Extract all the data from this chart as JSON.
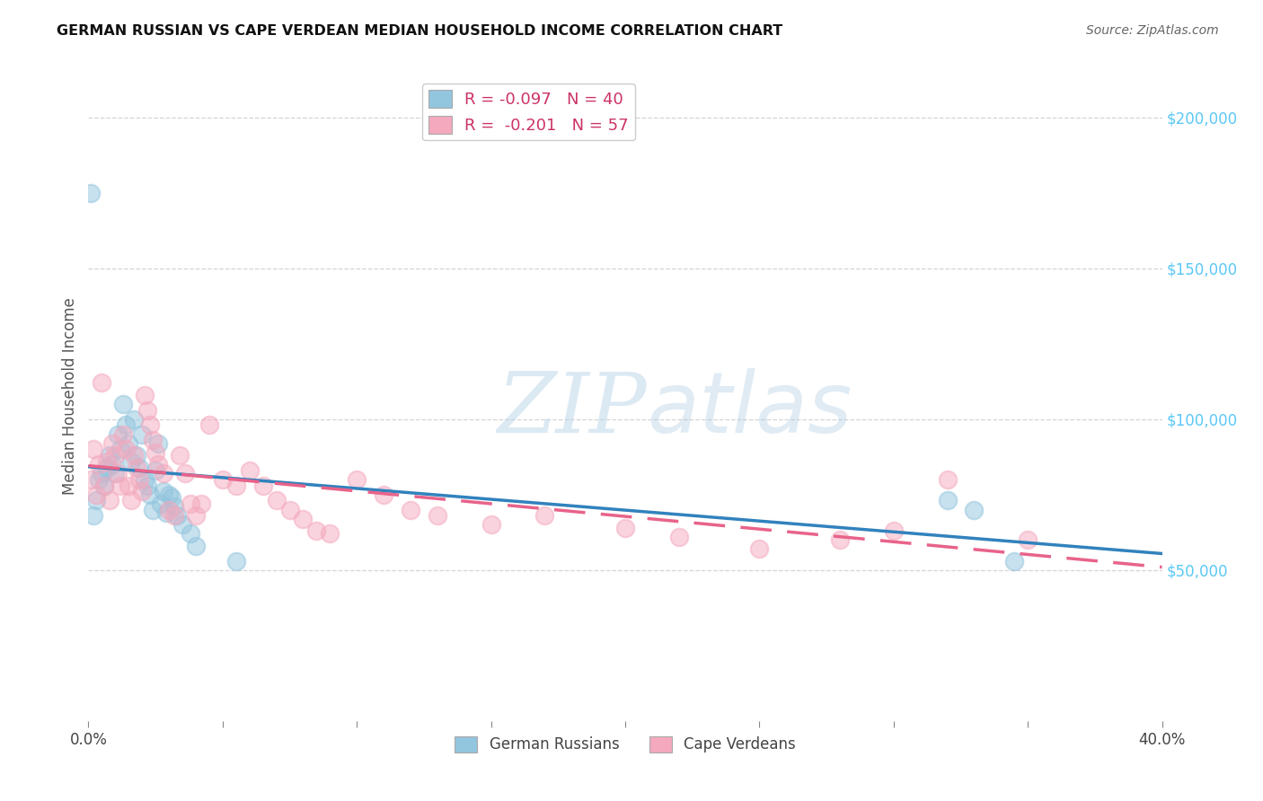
{
  "title": "GERMAN RUSSIAN VS CAPE VERDEAN MEDIAN HOUSEHOLD INCOME CORRELATION CHART",
  "source": "Source: ZipAtlas.com",
  "ylabel": "Median Household Income",
  "right_ytick_labels": [
    "$50,000",
    "$100,000",
    "$150,000",
    "$200,000"
  ],
  "right_ytick_values": [
    50000,
    100000,
    150000,
    200000
  ],
  "legend_r_blue": "R = -0.097",
  "legend_n_blue": "N = 40",
  "legend_r_pink": "R =  -0.201",
  "legend_n_pink": "N = 57",
  "legend_labels_bottom": [
    "German Russians",
    "Cape Verdeans"
  ],
  "watermark_zip": "ZIP",
  "watermark_atlas": "atlas",
  "blue_color": "#92c5de",
  "pink_color": "#f4a9be",
  "blue_line_color": "#3182bd",
  "pink_line_color": "#e8638a",
  "background_color": "#ffffff",
  "grid_color": "#d0d0d0",
  "xlim": [
    0.0,
    0.4
  ],
  "ylim": [
    0,
    215000
  ],
  "xtick_positions": [
    0.0,
    0.05,
    0.1,
    0.15,
    0.2,
    0.25,
    0.3,
    0.35,
    0.4
  ],
  "blue_scatter_x": [
    0.001,
    0.002,
    0.003,
    0.004,
    0.005,
    0.006,
    0.007,
    0.008,
    0.009,
    0.01,
    0.011,
    0.012,
    0.013,
    0.014,
    0.015,
    0.016,
    0.017,
    0.018,
    0.019,
    0.02,
    0.021,
    0.022,
    0.023,
    0.024,
    0.025,
    0.026,
    0.027,
    0.028,
    0.029,
    0.03,
    0.031,
    0.032,
    0.033,
    0.035,
    0.038,
    0.04,
    0.055,
    0.32,
    0.33,
    0.345
  ],
  "blue_scatter_y": [
    175000,
    68000,
    73000,
    80000,
    82000,
    78000,
    84000,
    88000,
    85000,
    82000,
    95000,
    90000,
    105000,
    98000,
    92000,
    86000,
    100000,
    88000,
    84000,
    95000,
    80000,
    78000,
    75000,
    70000,
    83000,
    92000,
    72000,
    76000,
    69000,
    75000,
    74000,
    71000,
    68000,
    65000,
    62000,
    58000,
    53000,
    73000,
    70000,
    53000
  ],
  "pink_scatter_x": [
    0.001,
    0.002,
    0.003,
    0.004,
    0.005,
    0.006,
    0.007,
    0.008,
    0.009,
    0.01,
    0.011,
    0.012,
    0.013,
    0.014,
    0.015,
    0.016,
    0.017,
    0.018,
    0.019,
    0.02,
    0.021,
    0.022,
    0.023,
    0.024,
    0.025,
    0.026,
    0.028,
    0.03,
    0.032,
    0.034,
    0.036,
    0.038,
    0.04,
    0.042,
    0.045,
    0.05,
    0.055,
    0.06,
    0.065,
    0.07,
    0.075,
    0.08,
    0.085,
    0.09,
    0.1,
    0.11,
    0.12,
    0.13,
    0.15,
    0.17,
    0.2,
    0.22,
    0.25,
    0.28,
    0.3,
    0.32,
    0.35
  ],
  "pink_scatter_y": [
    80000,
    90000,
    75000,
    85000,
    112000,
    78000,
    86000,
    73000,
    92000,
    88000,
    82000,
    78000,
    95000,
    90000,
    78000,
    73000,
    88000,
    84000,
    80000,
    76000,
    108000,
    103000,
    98000,
    93000,
    89000,
    85000,
    82000,
    70000,
    68000,
    88000,
    82000,
    72000,
    68000,
    72000,
    98000,
    80000,
    78000,
    83000,
    78000,
    73000,
    70000,
    67000,
    63000,
    62000,
    80000,
    75000,
    70000,
    68000,
    65000,
    68000,
    64000,
    61000,
    57000,
    60000,
    63000,
    80000,
    60000
  ]
}
